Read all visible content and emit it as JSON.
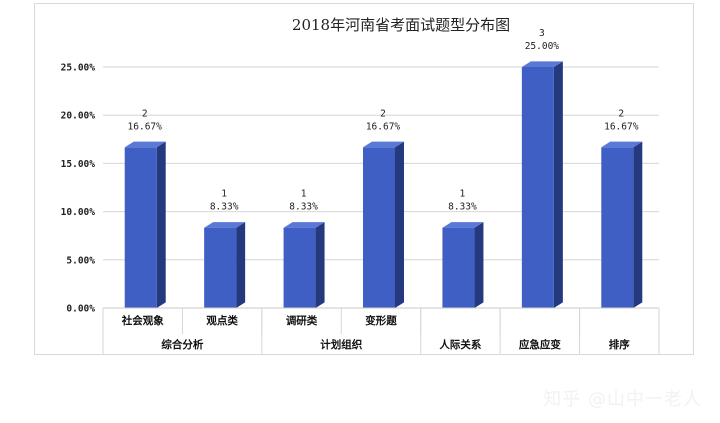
{
  "chart_data": {
    "type": "bar",
    "title": "2018年河南省考面试题型分布图",
    "ylim": [
      0,
      25
    ],
    "yticks": [
      "0.00%",
      "5.00%",
      "10.00%",
      "15.00%",
      "20.00%",
      "25.00%"
    ],
    "ytick_values": [
      0,
      5,
      10,
      15,
      20,
      25
    ],
    "grid": true,
    "bar_color": "#3f5fc4",
    "categories": [
      "社会观象",
      "观点类",
      "调研类",
      "变形题",
      "人际关系",
      "应急应变",
      "排序"
    ],
    "groups": [
      {
        "label": "综合分析",
        "span": 2
      },
      {
        "label": "计划组织",
        "span": 2
      },
      {
        "label": "",
        "span": 1
      },
      {
        "label": "",
        "span": 1
      },
      {
        "label": "",
        "span": 1
      }
    ],
    "counts": [
      "2",
      "1",
      "1",
      "2",
      "1",
      "3",
      "2"
    ],
    "values": [
      16.67,
      8.33,
      8.33,
      16.67,
      8.33,
      25.0,
      16.67
    ],
    "value_labels": [
      "16.67%",
      "8.33%",
      "8.33%",
      "16.67%",
      "8.33%",
      "25.00%",
      "16.67%"
    ]
  },
  "watermark": "知乎 @山中一老人"
}
